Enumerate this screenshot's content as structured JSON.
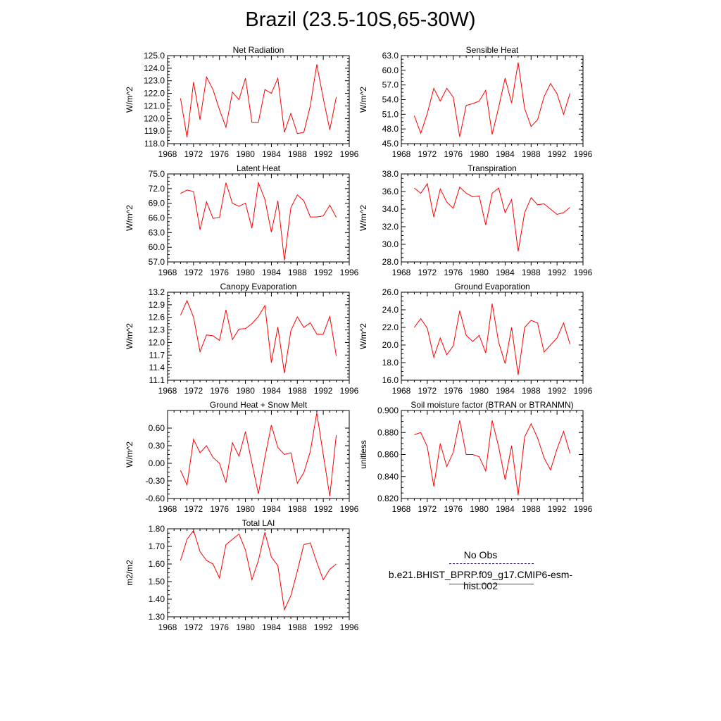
{
  "title": "Brazil (23.5-10S,65-30W)",
  "legend": {
    "obs_label": "No Obs",
    "model_label": "b.e21.BHIST_BPRP.f09_g17.CMIP6-esm-hist.002",
    "obs_color": "#1a1a5e",
    "model_color": "#ff0000"
  },
  "colors": {
    "line": "#ff0000",
    "axis": "#000000",
    "background": "#ffffff"
  },
  "x_axis": {
    "ticks": [
      1968,
      1972,
      1976,
      1980,
      1984,
      1988,
      1992,
      1996
    ],
    "tick_labels": [
      "1968",
      "1972",
      "1976",
      "1980",
      "1984",
      "1988",
      "1992",
      "1996"
    ],
    "xlim": [
      1968,
      1996
    ]
  },
  "chart_data": [
    {
      "type": "line",
      "title": "Net Radiation",
      "ylabel": "W/m^2",
      "ylim": [
        118.0,
        125.0
      ],
      "yticks": [
        118.0,
        119.0,
        120.0,
        121.0,
        122.0,
        123.0,
        124.0,
        125.0
      ],
      "ytick_labels": [
        "118.0",
        "119.0",
        "120.0",
        "121.0",
        "122.0",
        "123.0",
        "124.0",
        "125.0"
      ],
      "x": [
        1970,
        1971,
        1972,
        1973,
        1974,
        1975,
        1976,
        1977,
        1978,
        1979,
        1980,
        1981,
        1982,
        1983,
        1984,
        1985,
        1986,
        1987,
        1988,
        1989,
        1990,
        1991,
        1992,
        1993,
        1994
      ],
      "values": [
        121.6,
        118.5,
        122.9,
        119.9,
        123.3,
        122.3,
        120.7,
        119.3,
        122.1,
        121.5,
        123.2,
        119.7,
        119.7,
        122.3,
        122.0,
        123.2,
        118.9,
        120.4,
        118.8,
        118.9,
        121.0,
        124.3,
        121.6,
        119.1,
        121.7
      ]
    },
    {
      "type": "line",
      "title": "Sensible Heat",
      "ylabel": "W/m^2",
      "ylim": [
        45.0,
        63.0
      ],
      "yticks": [
        45.0,
        48.0,
        51.0,
        54.0,
        57.0,
        60.0,
        63.0
      ],
      "ytick_labels": [
        "45.0",
        "48.0",
        "51.0",
        "54.0",
        "57.0",
        "60.0",
        "63.0"
      ],
      "x": [
        1970,
        1971,
        1972,
        1973,
        1974,
        1975,
        1976,
        1977,
        1978,
        1979,
        1980,
        1981,
        1982,
        1983,
        1984,
        1985,
        1986,
        1987,
        1988,
        1989,
        1990,
        1991,
        1992,
        1993,
        1994
      ],
      "values": [
        50.7,
        47.1,
        51.2,
        56.3,
        53.7,
        56.3,
        54.5,
        46.4,
        52.8,
        53.2,
        53.7,
        55.9,
        46.9,
        52.4,
        58.4,
        53.3,
        61.6,
        52.2,
        48.5,
        49.9,
        54.6,
        57.3,
        55.2,
        51.0,
        55.3
      ]
    },
    {
      "type": "line",
      "title": "Latent Heat",
      "ylabel": "W/m^2",
      "ylim": [
        57.0,
        75.0
      ],
      "yticks": [
        57.0,
        60.0,
        63.0,
        66.0,
        69.0,
        72.0,
        75.0
      ],
      "ytick_labels": [
        "57.0",
        "60.0",
        "63.0",
        "66.0",
        "69.0",
        "72.0",
        "75.0"
      ],
      "x": [
        1970,
        1971,
        1972,
        1973,
        1974,
        1975,
        1976,
        1977,
        1978,
        1979,
        1980,
        1981,
        1982,
        1983,
        1984,
        1985,
        1986,
        1987,
        1988,
        1989,
        1990,
        1991,
        1992,
        1993,
        1994
      ],
      "values": [
        71.0,
        71.7,
        71.4,
        63.6,
        69.3,
        65.9,
        66.1,
        73.2,
        69.0,
        68.4,
        69.0,
        63.9,
        73.2,
        69.8,
        63.1,
        69.5,
        57.3,
        68.1,
        70.7,
        69.5,
        66.2,
        66.2,
        66.4,
        68.6,
        66.1
      ]
    },
    {
      "type": "line",
      "title": "Transpiration",
      "ylabel": "W/m^2",
      "ylim": [
        28.0,
        38.0
      ],
      "yticks": [
        28.0,
        30.0,
        32.0,
        34.0,
        36.0,
        38.0
      ],
      "ytick_labels": [
        "28.0",
        "30.0",
        "32.0",
        "34.0",
        "36.0",
        "38.0"
      ],
      "x": [
        1970,
        1971,
        1972,
        1973,
        1974,
        1975,
        1976,
        1977,
        1978,
        1979,
        1980,
        1981,
        1982,
        1983,
        1984,
        1985,
        1986,
        1987,
        1988,
        1989,
        1990,
        1991,
        1992,
        1993,
        1994
      ],
      "values": [
        36.4,
        35.8,
        36.9,
        33.1,
        36.3,
        34.8,
        34.1,
        36.5,
        35.8,
        35.4,
        35.5,
        32.2,
        35.8,
        36.4,
        33.6,
        35.1,
        29.2,
        33.6,
        35.3,
        34.5,
        34.6,
        34.0,
        33.4,
        33.6,
        34.2
      ]
    },
    {
      "type": "line",
      "title": "Canopy Evaporation",
      "ylabel": "W/m^2",
      "ylim": [
        11.1,
        13.2
      ],
      "yticks": [
        11.1,
        11.4,
        11.7,
        12.0,
        12.3,
        12.6,
        12.9,
        13.2
      ],
      "ytick_labels": [
        "11.1",
        "11.4",
        "11.7",
        "12.0",
        "12.3",
        "12.6",
        "12.9",
        "13.2"
      ],
      "x": [
        1970,
        1971,
        1972,
        1973,
        1974,
        1975,
        1976,
        1977,
        1978,
        1979,
        1980,
        1981,
        1982,
        1983,
        1984,
        1985,
        1986,
        1987,
        1988,
        1989,
        1990,
        1991,
        1992,
        1993,
        1994
      ],
      "values": [
        12.65,
        13.0,
        12.6,
        11.78,
        12.18,
        12.16,
        12.05,
        12.78,
        12.07,
        12.32,
        12.33,
        12.45,
        12.62,
        12.88,
        11.52,
        12.37,
        11.27,
        12.28,
        12.61,
        12.36,
        12.47,
        12.2,
        12.2,
        12.62,
        11.68
      ]
    },
    {
      "type": "line",
      "title": "Ground Evaporation",
      "ylabel": "W/m^2",
      "ylim": [
        16.0,
        26.0
      ],
      "yticks": [
        16.0,
        18.0,
        20.0,
        22.0,
        24.0,
        26.0
      ],
      "ytick_labels": [
        "16.0",
        "18.0",
        "20.0",
        "22.0",
        "24.0",
        "26.0"
      ],
      "x": [
        1970,
        1971,
        1972,
        1973,
        1974,
        1975,
        1976,
        1977,
        1978,
        1979,
        1980,
        1981,
        1982,
        1983,
        1984,
        1985,
        1986,
        1987,
        1988,
        1989,
        1990,
        1991,
        1992,
        1993,
        1994
      ],
      "values": [
        22.0,
        23.0,
        21.9,
        18.6,
        20.8,
        18.9,
        19.9,
        23.9,
        21.1,
        20.4,
        21.1,
        19.1,
        24.7,
        20.3,
        17.9,
        22.0,
        16.6,
        22.0,
        22.8,
        22.5,
        19.2,
        20.0,
        20.8,
        22.5,
        20.1
      ]
    },
    {
      "type": "line",
      "title": "Ground Heat + Snow Melt",
      "ylabel": "W/m^2",
      "ylim": [
        -0.6,
        0.9
      ],
      "yticks": [
        -0.6,
        -0.3,
        0.0,
        0.3,
        0.6
      ],
      "ytick_labels": [
        "-0.60",
        "-0.30",
        "0.00",
        "0.30",
        "0.60"
      ],
      "x": [
        1970,
        1971,
        1972,
        1973,
        1974,
        1975,
        1976,
        1977,
        1978,
        1979,
        1980,
        1981,
        1982,
        1983,
        1984,
        1985,
        1986,
        1987,
        1988,
        1989,
        1990,
        1991,
        1992,
        1993,
        1994
      ],
      "values": [
        -0.12,
        -0.37,
        0.41,
        0.18,
        0.3,
        0.1,
        0.0,
        -0.33,
        0.35,
        0.12,
        0.54,
        0.0,
        -0.52,
        0.1,
        0.65,
        0.27,
        0.15,
        0.18,
        -0.34,
        -0.16,
        0.2,
        0.86,
        0.15,
        -0.56,
        0.48
      ]
    },
    {
      "type": "line",
      "title": "Soil moisture factor (BTRAN or BTRANMN)",
      "ylabel": "unitless",
      "ylim": [
        0.82,
        0.9
      ],
      "yticks": [
        0.82,
        0.84,
        0.86,
        0.88,
        0.9
      ],
      "ytick_labels": [
        "0.820",
        "0.840",
        "0.860",
        "0.880",
        "0.900"
      ],
      "x": [
        1970,
        1971,
        1972,
        1973,
        1974,
        1975,
        1976,
        1977,
        1978,
        1979,
        1980,
        1981,
        1982,
        1983,
        1984,
        1985,
        1986,
        1987,
        1988,
        1989,
        1990,
        1991,
        1992,
        1993,
        1994
      ],
      "values": [
        0.878,
        0.88,
        0.867,
        0.831,
        0.87,
        0.849,
        0.862,
        0.891,
        0.86,
        0.86,
        0.858,
        0.845,
        0.891,
        0.867,
        0.837,
        0.868,
        0.823,
        0.876,
        0.888,
        0.875,
        0.857,
        0.846,
        0.865,
        0.881,
        0.861
      ]
    },
    {
      "type": "line",
      "title": "Total LAI",
      "ylabel": "m2/m2",
      "ylim": [
        1.3,
        1.8
      ],
      "yticks": [
        1.3,
        1.4,
        1.5,
        1.6,
        1.7,
        1.8
      ],
      "ytick_labels": [
        "1.30",
        "1.40",
        "1.50",
        "1.60",
        "1.70",
        "1.80"
      ],
      "x": [
        1970,
        1971,
        1972,
        1973,
        1974,
        1975,
        1976,
        1977,
        1978,
        1979,
        1980,
        1981,
        1982,
        1983,
        1984,
        1985,
        1986,
        1987,
        1988,
        1989,
        1990,
        1991,
        1992,
        1993,
        1994
      ],
      "values": [
        1.62,
        1.74,
        1.79,
        1.67,
        1.62,
        1.6,
        1.52,
        1.71,
        1.74,
        1.77,
        1.68,
        1.51,
        1.62,
        1.78,
        1.64,
        1.59,
        1.34,
        1.42,
        1.56,
        1.71,
        1.72,
        1.61,
        1.51,
        1.57,
        1.6
      ]
    }
  ]
}
